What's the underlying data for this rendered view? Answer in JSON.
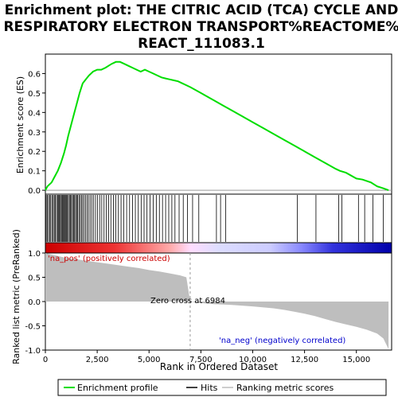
{
  "title_lines": [
    "Enrichment plot: THE CITRIC ACID (TCA) CYCLE AND",
    "RESPIRATORY ELECTRON TRANSPORT%REACTOME%",
    "REACT_111083.1"
  ],
  "colors": {
    "enrichment_line": "#00dd00",
    "hits": "#000000",
    "ranking_fill": "#bebebe",
    "zero_cross_line": "#999999",
    "pos_label": "#cc0000",
    "neg_label": "#0000cc",
    "frame": "#000000"
  },
  "chart_data": [
    {
      "type": "line",
      "name": "enrichment-score-panel",
      "ylabel": "Enrichment score (ES)",
      "xlim": [
        0,
        16700
      ],
      "ylim": [
        -0.02,
        0.7
      ],
      "yticks": [
        "0.0",
        "0.1",
        "0.2",
        "0.3",
        "0.4",
        "0.5",
        "0.6"
      ],
      "series": [
        {
          "name": "Enrichment profile",
          "x": [
            0,
            100,
            300,
            450,
            600,
            750,
            900,
            1000,
            1100,
            1250,
            1400,
            1500,
            1650,
            1800,
            1950,
            2100,
            2300,
            2500,
            2700,
            2900,
            3050,
            3200,
            3400,
            3600,
            3800,
            4000,
            4200,
            4400,
            4600,
            4800,
            5000,
            5200,
            5400,
            5600,
            5800,
            6000,
            6200,
            6400,
            6600,
            6800,
            7000,
            7500,
            8000,
            8500,
            9000,
            9500,
            10000,
            10500,
            11000,
            11500,
            12000,
            12500,
            13000,
            13500,
            14000,
            14200,
            14500,
            15000,
            15300,
            15700,
            16000,
            16300,
            16550
          ],
          "y": [
            0.0,
            0.02,
            0.04,
            0.07,
            0.1,
            0.14,
            0.19,
            0.23,
            0.28,
            0.34,
            0.4,
            0.44,
            0.5,
            0.55,
            0.57,
            0.59,
            0.61,
            0.62,
            0.62,
            0.63,
            0.64,
            0.65,
            0.66,
            0.66,
            0.65,
            0.64,
            0.63,
            0.62,
            0.61,
            0.62,
            0.61,
            0.6,
            0.59,
            0.58,
            0.575,
            0.57,
            0.565,
            0.56,
            0.55,
            0.54,
            0.53,
            0.5,
            0.47,
            0.44,
            0.41,
            0.38,
            0.35,
            0.32,
            0.29,
            0.26,
            0.23,
            0.2,
            0.17,
            0.14,
            0.11,
            0.1,
            0.09,
            0.06,
            0.055,
            0.04,
            0.02,
            0.01,
            0.0
          ]
        }
      ]
    },
    {
      "type": "scatter",
      "name": "hits-panel",
      "series": [
        {
          "name": "Hits",
          "x": [
            40,
            90,
            150,
            210,
            260,
            330,
            380,
            430,
            480,
            540,
            590,
            640,
            680,
            720,
            770,
            810,
            850,
            890,
            930,
            970,
            1010,
            1060,
            1110,
            1160,
            1210,
            1260,
            1310,
            1360,
            1410,
            1460,
            1510,
            1560,
            1620,
            1680,
            1740,
            1800,
            1870,
            1940,
            2010,
            2080,
            2160,
            2240,
            2330,
            2420,
            2520,
            2620,
            2720,
            2830,
            2940,
            3050,
            3160,
            3280,
            3400,
            3520,
            3650,
            3780,
            3920,
            4060,
            4200,
            4340,
            4480,
            4620,
            4760,
            4900,
            5050,
            5200,
            5350,
            5500,
            5650,
            5800,
            5950,
            6100,
            6250,
            6450,
            6650,
            6850,
            7100,
            7400,
            8250,
            8450,
            8700,
            12150,
            13050,
            14150,
            14300,
            15100,
            15400,
            15800,
            16300
          ]
        }
      ]
    },
    {
      "type": "area",
      "name": "ranking-metric-panel",
      "xlabel": "Rank in Ordered Dataset",
      "ylabel": "Ranked list metric (PreRanked)",
      "xlim": [
        0,
        16700
      ],
      "ylim": [
        -1.0,
        1.0
      ],
      "xticks": [
        "0",
        "2,500",
        "5,000",
        "7,500",
        "10,000",
        "12,500",
        "15,000"
      ],
      "yticks": [
        "1.0",
        "0.5",
        "0.0",
        "-0.5",
        "-1.0"
      ],
      "series": [
        {
          "name": "Ranking metric scores",
          "x": [
            0,
            200,
            500,
            1000,
            1500,
            2000,
            2500,
            3000,
            3500,
            4000,
            4500,
            5000,
            5500,
            6000,
            6500,
            6800,
            6984,
            7500,
            8000,
            9000,
            10000,
            11000,
            11500,
            12000,
            12500,
            13000,
            13500,
            14000,
            14500,
            15000,
            15500,
            16000,
            16300,
            16550
          ],
          "y": [
            1.0,
            0.98,
            0.95,
            0.9,
            0.87,
            0.84,
            0.81,
            0.78,
            0.75,
            0.72,
            0.69,
            0.65,
            0.62,
            0.58,
            0.54,
            0.5,
            0.0,
            -0.03,
            -0.05,
            -0.07,
            -0.1,
            -0.14,
            -0.17,
            -0.21,
            -0.25,
            -0.3,
            -0.36,
            -0.42,
            -0.47,
            -0.52,
            -0.58,
            -0.66,
            -0.76,
            -0.98
          ]
        }
      ],
      "annotations": {
        "zero_cross": "Zero cross at 6984",
        "pos_label": "'na_pos' (positively correlated)",
        "neg_label": "'na_neg' (negatively correlated)"
      }
    }
  ],
  "legend": {
    "items": [
      "Enrichment profile",
      "Hits",
      "Ranking metric scores"
    ]
  }
}
